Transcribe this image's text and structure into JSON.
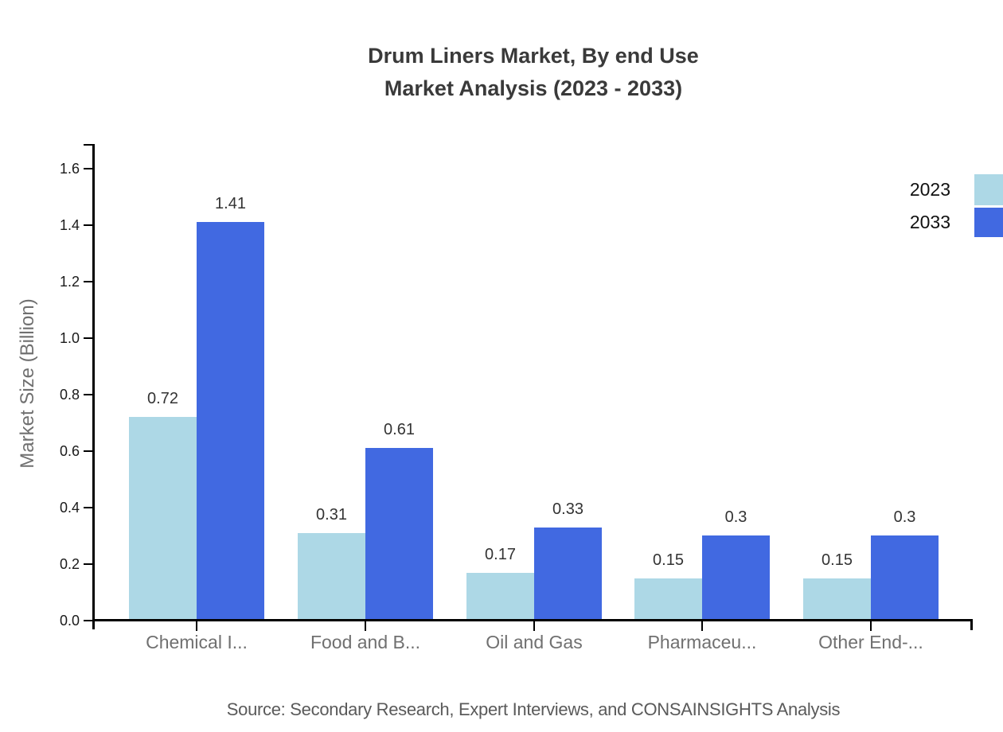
{
  "title": {
    "line1": "Drum Liners Market, By end Use",
    "line2": "Market Analysis (2023 - 2033)"
  },
  "source": "Source: Secondary Research, Expert Interviews, and CONSAINSIGHTS Analysis",
  "legend": {
    "items": [
      {
        "label": "2023",
        "color": "#ADD8E6"
      },
      {
        "label": "2033",
        "color": "#4169E1"
      }
    ]
  },
  "chart_data": {
    "type": "bar",
    "title": "Drum Liners Market, By end Use Market Analysis (2023 - 2033)",
    "categories": [
      "Chemical I...",
      "Food and B...",
      "Oil and Gas",
      "Pharmaceu...",
      "Other End-..."
    ],
    "series": [
      {
        "name": "2023",
        "color": "#ADD8E6",
        "values": [
          0.72,
          0.31,
          0.17,
          0.15,
          0.15
        ]
      },
      {
        "name": "2033",
        "color": "#4169E1",
        "values": [
          1.41,
          0.61,
          0.33,
          0.3,
          0.3
        ]
      }
    ],
    "xlabel": "",
    "ylabel": "Market Size (Billion)",
    "ylim": [
      0,
      1.7
    ],
    "yticks": [
      0.0,
      0.2,
      0.4,
      0.6,
      0.8,
      1.0,
      1.2,
      1.4,
      1.6
    ],
    "grid": false,
    "legend_position": "top-right",
    "value_labels": true
  }
}
